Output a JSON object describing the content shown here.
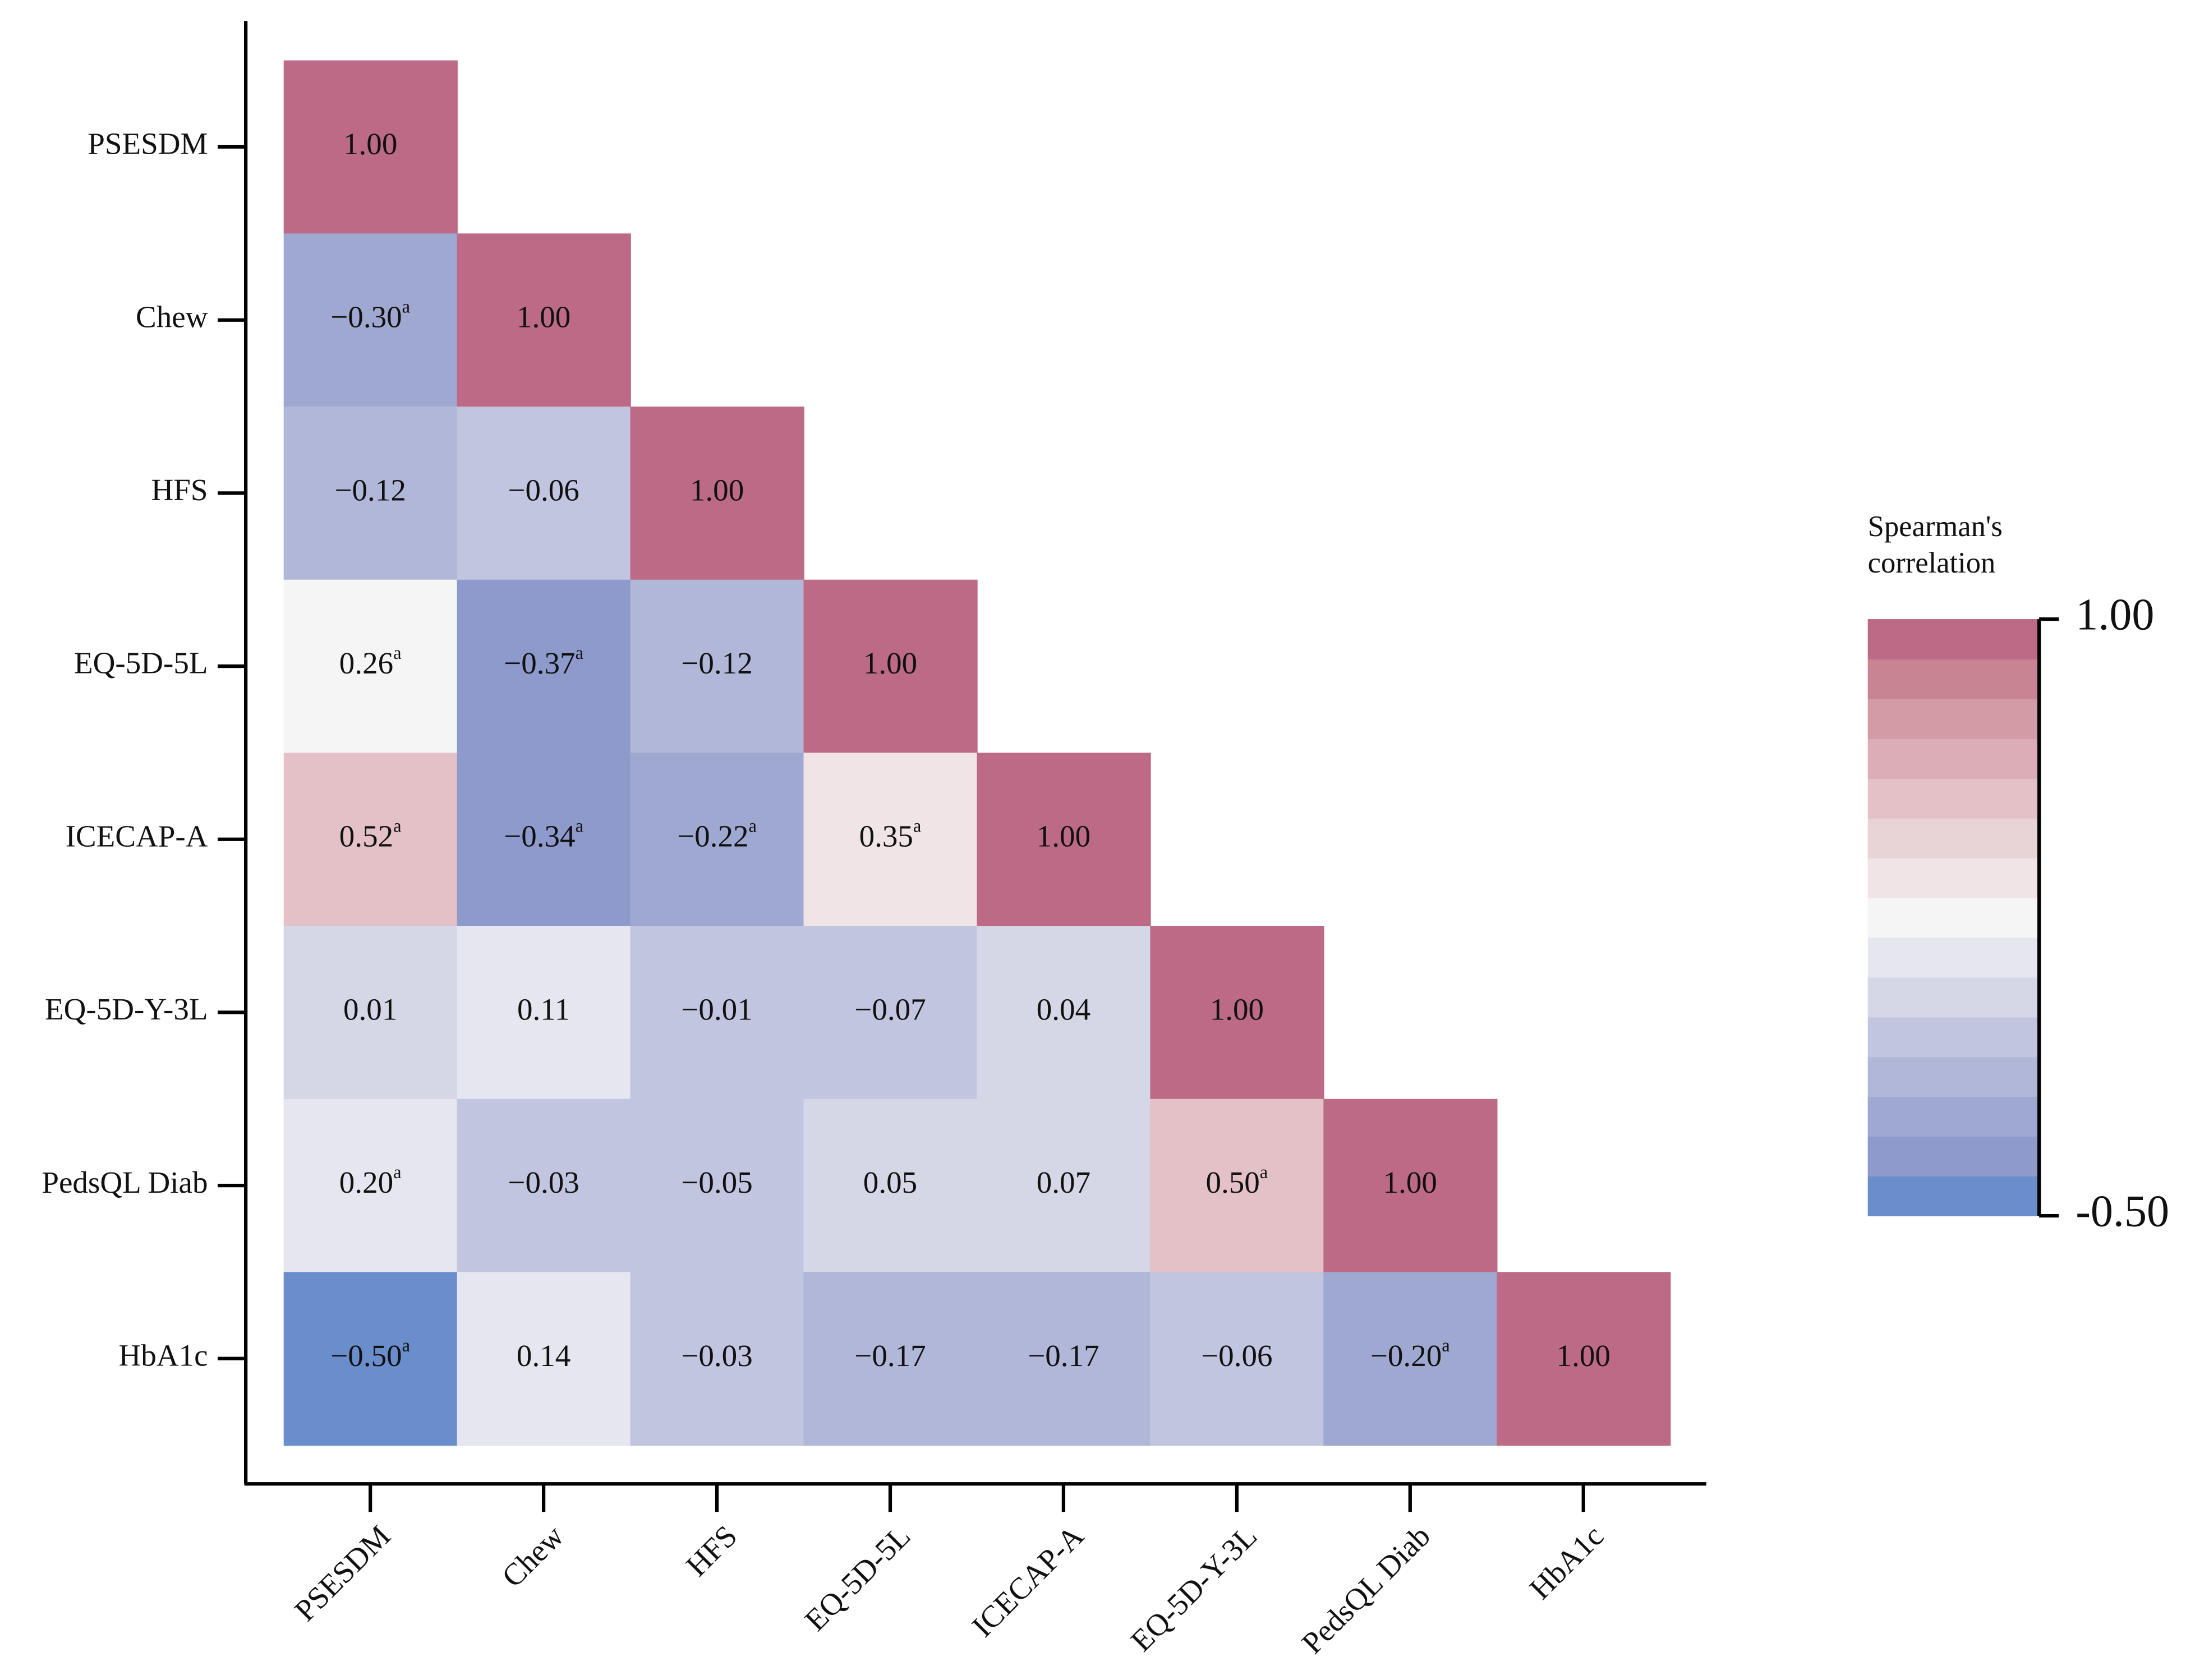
{
  "chart_data": {
    "type": "heatmap",
    "categories": [
      "PSESDM",
      "Chew",
      "HFS",
      "EQ-5D-5L",
      "ICECAP-A",
      "EQ-5D-Y-3L",
      "PedsQL Diab",
      "HbA1c"
    ],
    "values": [
      [
        1,
        null,
        null,
        null,
        null,
        null,
        null,
        null
      ],
      [
        -0.3,
        1,
        null,
        null,
        null,
        null,
        null,
        null
      ],
      [
        -0.12,
        -0.06,
        1,
        null,
        null,
        null,
        null,
        null
      ],
      [
        0.26,
        -0.37,
        -0.12,
        1,
        null,
        null,
        null,
        null
      ],
      [
        0.52,
        -0.34,
        -0.22,
        0.35,
        1,
        null,
        null,
        null
      ],
      [
        0.01,
        0.11,
        -0.01,
        -0.07,
        0.04,
        1,
        null,
        null
      ],
      [
        0.2,
        -0.03,
        -0.05,
        0.05,
        0.07,
        0.5,
        1,
        null
      ],
      [
        -0.5,
        0.14,
        -0.03,
        -0.17,
        -0.17,
        -0.06,
        -0.2,
        1
      ]
    ],
    "value_labels": [
      [
        "1.00",
        null,
        null,
        null,
        null,
        null,
        null,
        null
      ],
      [
        "−0.30",
        "1.00",
        null,
        null,
        null,
        null,
        null,
        null
      ],
      [
        "−0.12",
        "−0.06",
        "1.00",
        null,
        null,
        null,
        null,
        null
      ],
      [
        "0.26",
        "−0.37",
        "−0.12",
        "1.00",
        null,
        null,
        null,
        null
      ],
      [
        "0.52",
        "−0.34",
        "−0.22",
        "0.35",
        "1.00",
        null,
        null,
        null
      ],
      [
        "0.01",
        "0.11",
        "−0.01",
        "−0.07",
        "0.04",
        "1.00",
        null,
        null
      ],
      [
        "0.20",
        "−0.03",
        "−0.05",
        "0.05",
        "0.07",
        "0.50",
        "1.00",
        null
      ],
      [
        "−0.50",
        "0.14",
        "−0.03",
        "−0.17",
        "−0.17",
        "−0.06",
        "−0.20",
        "1.00"
      ]
    ],
    "superscripts": [
      [
        null,
        null,
        null,
        null,
        null,
        null,
        null,
        null
      ],
      [
        "a",
        null,
        null,
        null,
        null,
        null,
        null,
        null
      ],
      [
        null,
        null,
        null,
        null,
        null,
        null,
        null,
        null
      ],
      [
        "a",
        "a",
        null,
        null,
        null,
        null,
        null,
        null
      ],
      [
        "a",
        "a",
        "a",
        "a",
        null,
        null,
        null,
        null
      ],
      [
        null,
        null,
        null,
        null,
        null,
        null,
        null,
        null
      ],
      [
        "a",
        null,
        null,
        null,
        null,
        "a",
        null,
        null
      ],
      [
        "a",
        null,
        null,
        null,
        null,
        null,
        "a",
        null
      ]
    ],
    "colorbar_title": [
      "Spearman's",
      "correlation"
    ],
    "clim": [
      -0.5,
      1
    ],
    "cticks": [
      {
        "value": 1,
        "label": "1.00"
      },
      {
        "value": -0.5,
        "label": "-0.50"
      }
    ],
    "colors": [
      "#6a8dcc",
      "#8e9acb",
      "#9fa8d0",
      "#b0b7d8",
      "#c1c5e0",
      "#d5d7e6",
      "#e5e6ef",
      "#f5f5f5",
      "#f0e4e6",
      "#e8d3d7",
      "#e3c1c7",
      "#dbadb6",
      "#d39ba5",
      "#c88493",
      "#bc6a86"
    ]
  }
}
